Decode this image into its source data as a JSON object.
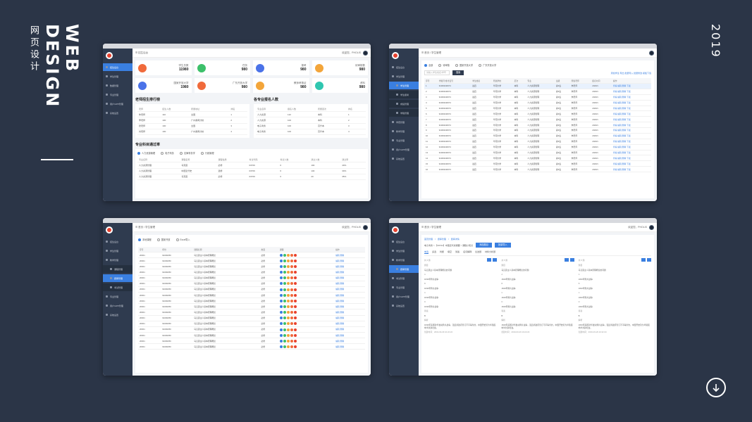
{
  "poster": {
    "title_en": "WEB DESIGN",
    "title_cn": "网页设计",
    "year": "2019",
    "down_icon": "arrow-down-circle-icon"
  },
  "common": {
    "header_home": "招生后台",
    "header_user": "欢迎您，PHOLIS",
    "header_crumb": "首页 / 学生管理"
  },
  "w1": {
    "menu": [
      "招生后台",
      "学生管理",
      "数据管理",
      "专业管理",
      "用户/APP管理",
      "系统设置"
    ],
    "cards": [
      {
        "label": "学生总数",
        "value": "11980",
        "color": "#f06a3b"
      },
      {
        "label": "任务",
        "value": "980",
        "color": "#3cc06a"
      },
      {
        "label": "报考",
        "value": "980",
        "color": "#4a72e8"
      },
      {
        "label": "待审核数",
        "value": "980",
        "color": "#f3a53a"
      },
      {
        "label": "国家开放大学",
        "value": "1980",
        "color": "#4a72e8"
      },
      {
        "label": "广东开放大学",
        "value": "980",
        "color": "#f06a3b"
      },
      {
        "label": "教师考核证",
        "value": "980",
        "color": "#f3a53a"
      },
      {
        "label": "资料",
        "value": "980",
        "color": "#2fc6b0"
      }
    ],
    "sec1": "老师招生排行榜",
    "sec2": "各专业报名人数",
    "rank_head": [
      "老师",
      "招生人数",
      "所属地址",
      "排名"
    ],
    "rank_rows": [
      [
        "朱老师",
        "110",
        "全国",
        "1"
      ],
      [
        "李老师",
        "100",
        "广州番禺分校",
        "2"
      ],
      [
        "张老师",
        "100",
        "全国",
        "3"
      ],
      [
        "刘老师",
        "100",
        "广州番禺分校",
        "4"
      ]
    ],
    "major_head": [
      "专业名称",
      "报名人数",
      "所属层次",
      "排名"
    ],
    "major_rows": [
      [
        "人力资源",
        "110",
        "本科",
        "1"
      ],
      [
        "人力资源",
        "100",
        "本科",
        "2"
      ],
      [
        "电子商务",
        "100",
        "高升本",
        "3"
      ],
      [
        "电子商务",
        "100",
        "高升本",
        "4"
      ]
    ],
    "sec3": "专业科目通过率",
    "radios": [
      "人力资源管理",
      "电子商务",
      "法律事务学",
      "行政管理"
    ],
    "pass_head": [
      "专业名称",
      "课程名称",
      "课程性质",
      "考试代码",
      "考试人数",
      "通过人数",
      "通过率"
    ],
    "pass_rows": [
      [
        "人力资源管理",
        "马克思",
        "必修",
        "03709",
        "6",
        "100",
        "40%"
      ],
      [
        "人力资源管理",
        "中国近代史",
        "选修",
        "03709",
        "6",
        "130",
        "30%"
      ],
      [
        "人力资源管理",
        "马克思",
        "必修",
        "03709",
        "6",
        "20",
        "35%"
      ]
    ]
  },
  "w2": {
    "menu": [
      "招生后台",
      "学生管理",
      "学生管理",
      "学生报考",
      "成绩管理",
      "学籍管理",
      "学费管理",
      "教学管理",
      "专业管理",
      "用户/APP管理",
      "系统设置"
    ],
    "radios": [
      "全部",
      "待审核",
      "国家开放大学",
      "广东开放大学"
    ],
    "search_placeholder": "请输入学生姓名/学号",
    "search_btn": "搜索",
    "right_actions": "添加学生 导出 批量导入 批量修改 模板下载",
    "head": [
      "序号",
      "学籍号/准考证号",
      "学生姓名",
      "所属学校",
      "层次",
      "专业",
      "班级",
      "所属老师",
      "报名时间",
      "操作"
    ],
    "row": [
      "1",
      "91000240974",
      "赵四",
      "华南大学",
      "本科",
      "人力资源管理",
      "春6班",
      "朱老师",
      "2020/1",
      "查看 编辑 删除 下载"
    ],
    "rows": 16
  },
  "w3": {
    "menu": [
      "招生后台",
      "学生管理",
      "教学管理",
      "课程管理",
      "题库管理",
      "考试管理",
      "专业管理",
      "用户/APP管理",
      "系统设置"
    ],
    "radios": [
      "本地课程",
      "国家开放",
      "Excel导入"
    ],
    "head": [
      "序号",
      "年份",
      "课程名称",
      "类型",
      "课程",
      "操作"
    ],
    "row": [
      "20001",
      "91000250",
      "马克思主义基本原理概论",
      "必修",
      "",
      "编辑 删除"
    ],
    "dot_colors": [
      "#3a7fe0",
      "#3cc06a",
      "#f3a53a",
      "#f06a3b",
      "#e8412e"
    ],
    "rows": 17
  },
  "w4": {
    "menu": [
      "招生后台",
      "学生管理",
      "教学管理",
      "题库管理",
      "考试管理",
      "专业管理",
      "用户/APP管理",
      "系统设置"
    ],
    "crumbs": [
      "首页管理",
      "/",
      "题库管理",
      "/",
      "题库详情"
    ],
    "title_line": "电子商务 > 【00744】中国近代史纲要 > 课程小知识",
    "btn1": "添加题目",
    "btn2": "批量导入",
    "tabs": [
      "单选",
      "多选",
      "判断",
      "填空",
      "简答",
      "名词解释",
      "论述题",
      "材料分析题"
    ],
    "col_title": "题目",
    "col_answer": "答案",
    "col_analysis": "解析",
    "q_text": "马克思主义基本原理概论的问题",
    "options": [
      "A",
      "B",
      "C",
      "D"
    ],
    "option_text": "1840年鸦片战争",
    "answer": "B",
    "analysis_text": "1840年英国对华发动鸦片战争，强迫清政府签订不平等条约，中国开始沦为半殖民地半封建社会。",
    "footer": "创建时间：2019-03-29 10:22:24",
    "count": "共 5 题"
  }
}
